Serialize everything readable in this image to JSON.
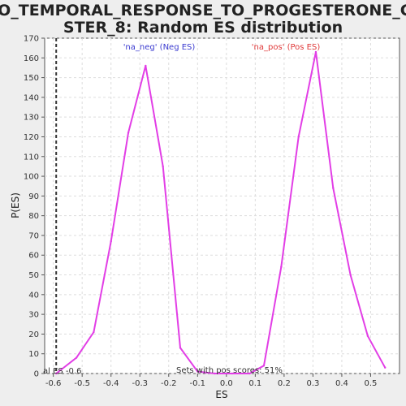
{
  "chart_data": {
    "type": "line",
    "title_line1": "YAO_TEMPORAL_RESPONSE_TO_PROGESTERONE_CLU",
    "title_line2": "STER_8: Random ES distribution",
    "xlabel": "ES",
    "ylabel": "P(ES)",
    "xlim": [
      -0.63,
      0.6
    ],
    "ylim": [
      0,
      170
    ],
    "xticks": [
      "-0.6",
      "-0.5",
      "-0.4",
      "-0.3",
      "-0.2",
      "-0.1",
      "0.0",
      "0.1",
      "0.2",
      "0.3",
      "0.4",
      "0.5"
    ],
    "yticks": [
      "0",
      "10",
      "20",
      "30",
      "40",
      "50",
      "60",
      "70",
      "80",
      "90",
      "100",
      "110",
      "120",
      "130",
      "140",
      "150",
      "160",
      "170"
    ],
    "grid": true,
    "series": [
      {
        "x": [
          -0.59,
          -0.52,
          -0.46,
          -0.4,
          -0.34,
          -0.28,
          -0.22,
          -0.16,
          -0.1,
          -0.04,
          0.02,
          0.08,
          0.13,
          0.19,
          0.25,
          0.31,
          0.37,
          0.43,
          0.49,
          0.55
        ],
        "y": [
          0,
          8,
          21,
          67,
          122,
          156,
          105,
          13,
          1,
          0,
          0,
          0,
          4,
          54,
          120,
          163,
          94,
          50,
          19,
          3
        ]
      }
    ],
    "legend": {
      "neg_label": "'na_neg' (Neg ES)",
      "pos_label": "'na_pos' (Pos ES)",
      "neg_color": "#3b3bd0",
      "pos_color": "#e03a3a"
    },
    "line_color": "#e23ee6",
    "marker_x": -0.59,
    "marker_label": "al ES -0.6",
    "annotation": "Sets with pos scores: 51%"
  }
}
